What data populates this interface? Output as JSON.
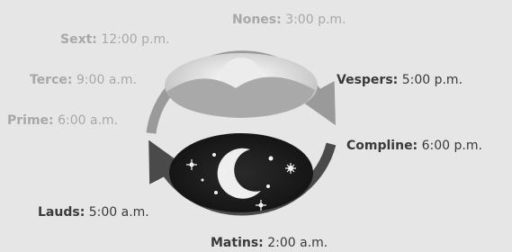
{
  "hours": [
    {
      "name": "Nones:",
      "time": "3:00 p.m."
    },
    {
      "name": "Sext:",
      "time": "12:00 p.m."
    },
    {
      "name": "Terce:",
      "time": "9:00 a.m."
    },
    {
      "name": "Prime:",
      "time": "6:00 a.m."
    },
    {
      "name": "Vespers:",
      "time": "5:00 p.m."
    },
    {
      "name": "Compline:",
      "time": "6:00 p.m."
    },
    {
      "name": "Lauds:",
      "time": "5:00 a.m."
    },
    {
      "name": "Matins:",
      "time": "2:00 a.m."
    }
  ]
}
